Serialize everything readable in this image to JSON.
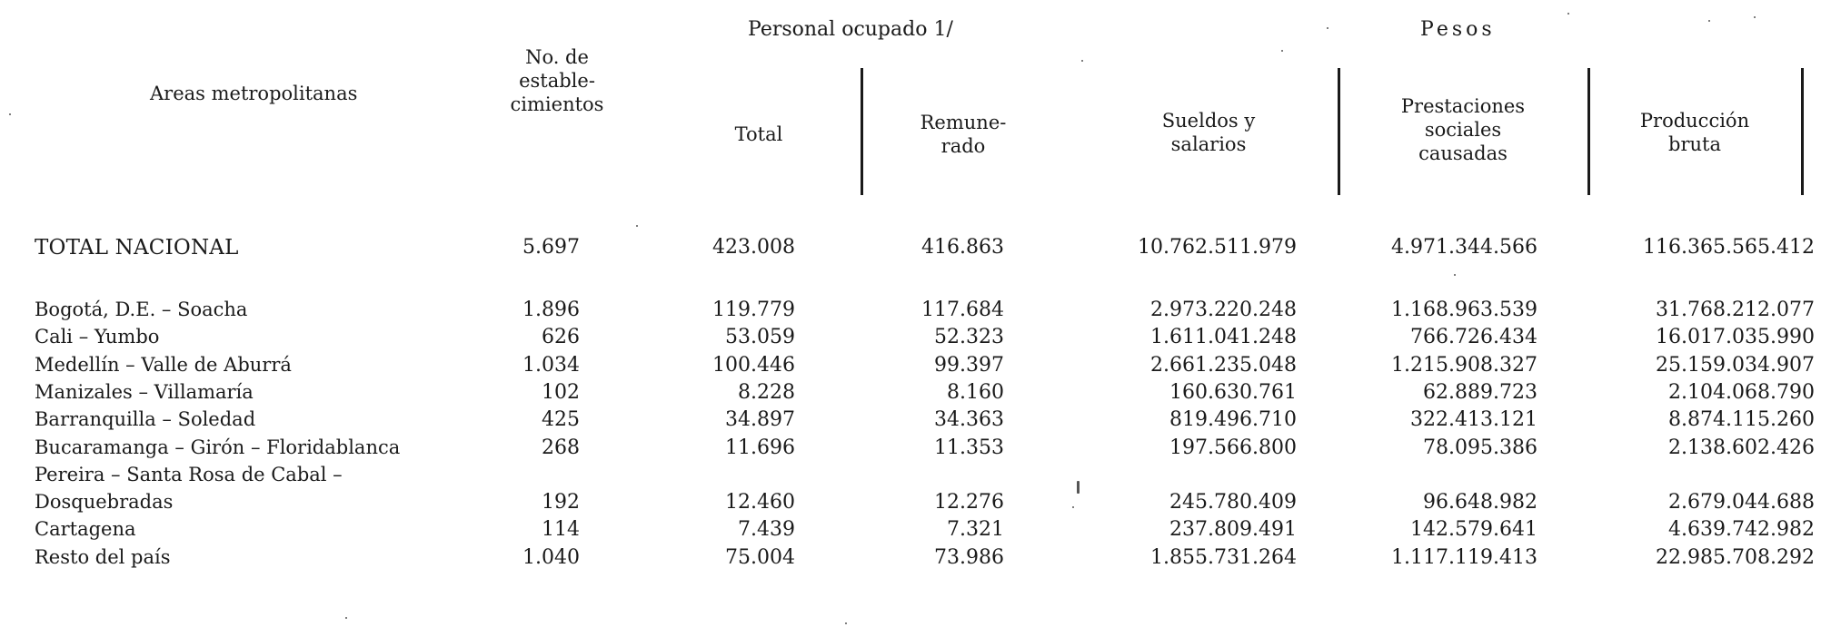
{
  "header": {
    "personal_ocupado": "Personal ocupado 1/",
    "pesos": "Pesos",
    "areas": "Areas metropolitanas",
    "establecimientos_lines": [
      "No. de",
      "estable-",
      "cimientos"
    ],
    "total": "Total",
    "remunerado_lines": [
      "Remune-",
      "rado"
    ],
    "sueldos_lines": [
      "Sueldos y",
      "salarios"
    ],
    "prestaciones_lines": [
      "Prestaciones",
      "sociales",
      "causadas"
    ],
    "produccion_lines": [
      "Producción",
      "bruta"
    ]
  },
  "total_row": {
    "label": "TOTAL NACIONAL",
    "establecimientos": "5.697",
    "total": "423.008",
    "remunerado": "416.863",
    "sueldos": "10.762.511.979",
    "prestaciones": "4.971.344.566",
    "produccion": "116.365.565.412"
  },
  "rows": [
    {
      "label": "Bogotá, D.E. – Soacha",
      "establecimientos": "1.896",
      "total": "119.779",
      "remunerado": "117.684",
      "sueldos": "2.973.220.248",
      "prestaciones": "1.168.963.539",
      "produccion": "31.768.212.077"
    },
    {
      "label": "Cali – Yumbo",
      "establecimientos": "626",
      "total": "53.059",
      "remunerado": "52.323",
      "sueldos": "1.611.041.248",
      "prestaciones": "766.726.434",
      "produccion": "16.017.035.990"
    },
    {
      "label": "Medellín – Valle de Aburrá",
      "establecimientos": "1.034",
      "total": "100.446",
      "remunerado": "99.397",
      "sueldos": "2.661.235.048",
      "prestaciones": "1.215.908.327",
      "produccion": "25.159.034.907"
    },
    {
      "label": "Manizales – Villamaría",
      "establecimientos": "102",
      "total": "8.228",
      "remunerado": "8.160",
      "sueldos": "160.630.761",
      "prestaciones": "62.889.723",
      "produccion": "2.104.068.790"
    },
    {
      "label": "Barranquilla – Soledad",
      "establecimientos": "425",
      "total": "34.897",
      "remunerado": "34.363",
      "sueldos": "819.496.710",
      "prestaciones": "322.413.121",
      "produccion": "8.874.115.260"
    },
    {
      "label": "Bucaramanga – Girón – Floridablanca",
      "establecimientos": "268",
      "total": "11.696",
      "remunerado": "11.353",
      "sueldos": "197.566.800",
      "prestaciones": "78.095.386",
      "produccion": "2.138.602.426"
    },
    {
      "label": "Pereira – Santa Rosa de Cabal –",
      "establecimientos": "",
      "total": "",
      "remunerado": "",
      "sueldos": "",
      "prestaciones": "",
      "produccion": ""
    },
    {
      "label": "Dosquebradas",
      "establecimientos": "192",
      "total": "12.460",
      "remunerado": "12.276",
      "sueldos": "245.780.409",
      "prestaciones": "96.648.982",
      "produccion": "2.679.044.688"
    },
    {
      "label": "Cartagena",
      "establecimientos": "114",
      "total": "7.439",
      "remunerado": "7.321",
      "sueldos": "237.809.491",
      "prestaciones": "142.579.641",
      "produccion": "4.639.742.982"
    },
    {
      "label": "Resto del país",
      "establecimientos": "1.040",
      "total": "75.004",
      "remunerado": "73.986",
      "sueldos": "1.855.731.264",
      "prestaciones": "1.117.119.413",
      "produccion": "22.985.708.292"
    }
  ]
}
